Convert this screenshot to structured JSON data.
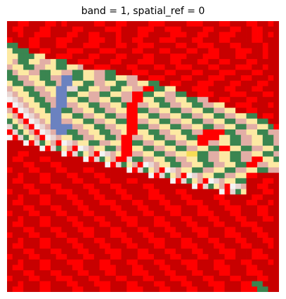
{
  "chart_data": {
    "type": "heatmap",
    "title": "band = 1, spatial_ref = 0",
    "xlabel": "",
    "ylabel": "",
    "axes_visible": false,
    "grid": false,
    "legend": "none",
    "colormap_note": "categorical land-cover classes",
    "palette": {
      "A": "#c80000",
      "B": "#ff0000",
      "C": "#3a8550",
      "D": "#fde9a3",
      "E": "#e2aea6",
      "F": "#6b82c0",
      "G": "#e9d6d3",
      "H": "#d5e6ac",
      "I": "#f4f4f4",
      "J": "#f6dc55"
    },
    "rows": 50,
    "cols": 50,
    "grid_rows": [
      "AABBAAABBABAAAAABBAABBAAAABBBAAAABBBAAABBAAABBAABA",
      "ABBAAABBAAAABBAAAABBBAAABBBAABBBAAAABBAAABBAABBAAA",
      "AABAABBBAAABBAABBAAABAAABBAAAABBBAABBAABBBAAABBABA",
      "BAAABBAAABBBAAABBBAABAABBAAABBBAAABBAAABBAAAABBAAA",
      "CCAABBAAABBAAABBBAAABBAABBBAAAABBAABBBAAABBAAAABAA",
      "DCCCAABBAAABBBAAABBBAAABBAAABBAAABBAABBAAABBBAABAA",
      "DDCCCDDAABBBAAABBAAABBAAABBAAABBBAAABBBAAABBAAABAA",
      "DECCDDEEDCCAABBBAAABBAAABBBAAABBAAABBAABBAAABBAAAA",
      "EDDCCEEDDCCDDEAABBBAAABBAAABBAABBBAAABBAAABBBAABAA",
      "CEDDEECCDDEECCDDEECCAAABBBAAABBAAABBAAABBBAAABBAAA",
      "CCEEDDCCEEFFCCDDEECCDDEEAABBBAAABBAAABBBAAABBAAABA",
      "DCCEEDDCCEFFDDCCEEDDCCEEDDCCAABBAAABBBAAABBAAABBAA",
      "EDDCCEEDDFFGGCCDDEECCDDEEBBCCDDAAABBBAAABBAAABBAAA",
      "GEDDCCEEDFFCCDDEECCDDEEBBCCDDEECCAABBBAAABBBAAABBA",
      "IGEDDCCEEFFDDCCEEDDCCEEBBDDCCEEDDCCEEAABBAAABBAAAA",
      "BIGEDDCCEFFEEDDCCEEDDCBBEEDDCCEEDDCCEEDDAABBBAAABA",
      "EBIGEDDCFFCCEEDDCCEEDDBBCCEEDDCCEEDDCCEEDDAABBAAAA",
      "DEBIGEDDFFDDCCEEDDCCEEBBDDCCEEDDCCEEDDCCEEDDCCABBA",
      "CDEBIGEDFFEEDDCCEEDDCCBBEEDDCCEEDDCCEEDDCCEEDDCCAA",
      "GCDEBIGEFFFFEEDDCCEEDDBBCCEEDDCCEEDDCCEEDDCCEEDDCB",
      "BGCDEBIGEFFCCEEDDCCEEDBBDDCCEEDDCCEEBBBBCCEEDDCCEE",
      "IBGCDEBIGEDDCCEEDDCCEBBEEDDCCEEDDCCBBBBDDCCEEDDCCE",
      "AAAIBGCDEBIGEDDCCEEDDBBCCEEDDCCEEDDBBEEDDCCEEDDCCE",
      "AAAAAAIBGCDEBIGEDDCCEBBDDCCEEDDCCEEDDCCBBDDCCEEDDC",
      "AABBAAAAAAIBGCDEBIGEDBBEEDDCCEEDDJJCCEEDDCCEEDDCCE",
      "ABBAAABBAAAAAAIBGCDEBBGCCEEDDCCEEDDCCEEDDCCEEBBDDC",
      "AAABBAAABBAAAAAAAAIBGCDEBIGEDDCCEEDDCCEEDDCCBBEEDD",
      "BAAABBAAABBAAABBAAAAAAIBGCDEBIGEDDCCEEDDCCEEDDCCEE",
      "AABAAABBAAABBAAABBAAAAAAAAIBGCDEBIGEDDCCEEDDBBAAAA",
      "ABBAAABBAAAABBAAABBAAABBAAAAAAIBGCDEBIGEDDCCAAABBA",
      "AAABBAAABBAAAABBAAABBAAAABBAAAAAAAIBGCDEBIGEAABBAA",
      "BAAABBAAABBBAAABBAAABBAAAABBAAABBAAAAAAIBGCDAAABBA",
      "AABAAABBAAABBAAABBAAABBAAABBBAAABBAAAABBAAAAABBAAA",
      "ABBAAABBAAAABBAAABBBAAABBAAABBAAABBBAAABBAAABBAABA",
      "AAABBAAABBAAABBAAAABBAAABBAAABBBAAABBAAABBBAAABBAA",
      "BAAABBAAABBAAABBAAAABBAAABBAAABBAAABBBAAABBAAABBAA",
      "AABAAABBAAABBAAABBAAABBBAAABBAAABBAAABBAAABBAAABBA",
      "ABBAAABBAAAABBAAABBAAABBAAABBBAAABBAAABBAAABBBAAAA",
      "AAABBAAABBAAABBBAAABBAAABBAAABBAAABBBAAABBAAABBAAA",
      "BAAABBAAABBAAABBAAABBBAAABBAAABBAAABBAAABBBAAABBAA",
      "AABAAABBAAABBAAABBAAABBAAABBBAAABBAAABBAAABBAAABBA",
      "ABBAAABBAAAABBAAABBAAABBAAABBAAABBBAAABBAAABBAAABA",
      "AAABBAAABBAAABBAAABBBAAABBAAABBAAABBAAABBBAAABBAAA",
      "BAAABBAAABBAAABBAAABBAAABBBAAABBAAABBAAABBAAABBBAA",
      "AABAAABBAAABBBAAABBAAABBAAABBAAABBBAAABBAAABBAAABA",
      "ABBAAABBAAAABBAAABBBAAABBAAABBAAABBAAABBBAAABBAAAA",
      "AAABBAAABBAAABBAAABBAAABBBAAABBAAABBAAABBAAABBBAAA",
      "BAAABBAAABBBAAABBAAABBAAABBAAABBBAAABBAAABBAAABBAA",
      "AABAAABBAAABBAAABBBAAABBAAABBAAABBAAABBBAAABBCCAAA",
      "ABBAAABBAAAABBAAABBAAABBBAAABBAAABBAAABBAAABBBCCAA"
    ]
  }
}
